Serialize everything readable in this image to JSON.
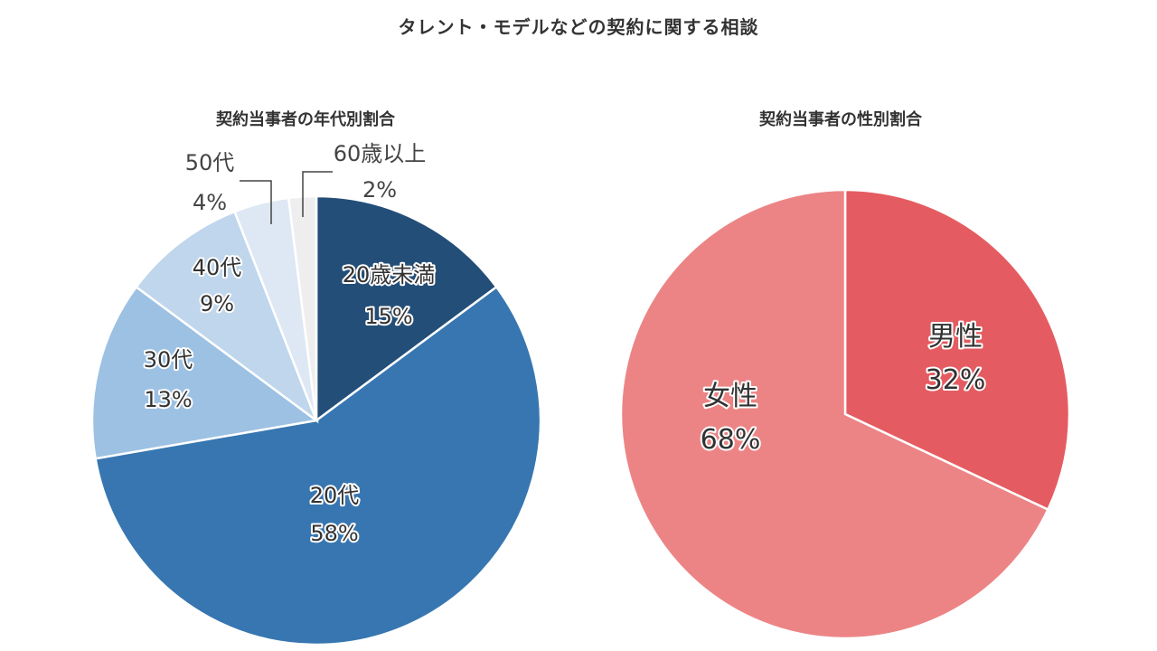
{
  "title": "タレント・モデルなどの契約に関する相談",
  "chart_data": [
    {
      "type": "pie",
      "title": "契約当事者の年代別割合",
      "categories": [
        "20歳未満",
        "20代",
        "30代",
        "40代",
        "50代",
        "60歳以上"
      ],
      "values": [
        15,
        58,
        13,
        9,
        4,
        2
      ],
      "labels": [
        "15%",
        "58%",
        "13%",
        "9%",
        "4%",
        "2%"
      ],
      "colors": [
        "#234e78",
        "#3776b0",
        "#9dc1e3",
        "#bfd6ec",
        "#dde8f4",
        "#eeeeee"
      ],
      "start_angle": "12 o'clock, clockwise",
      "legend": "none (data labels on slices)"
    },
    {
      "type": "pie",
      "title": "契約当事者の性別割合",
      "categories": [
        "男性",
        "女性"
      ],
      "values": [
        32,
        68
      ],
      "labels": [
        "32%",
        "68%"
      ],
      "colors": [
        "#e45c61",
        "#ec8485"
      ],
      "start_angle": "12 o'clock, clockwise",
      "legend": "none (data labels on slices)"
    }
  ],
  "age_chart": {
    "title": "契約当事者の年代別割合",
    "slices": [
      {
        "name": "20歳未満",
        "pct": "15%"
      },
      {
        "name": "20代",
        "pct": "58%"
      },
      {
        "name": "30代",
        "pct": "13%"
      },
      {
        "name": "40代",
        "pct": "9%"
      },
      {
        "name": "50代",
        "pct": "4%"
      },
      {
        "name": "60歳以上",
        "pct": "2%"
      }
    ]
  },
  "gender_chart": {
    "title": "契約当事者の性別割合",
    "slices": [
      {
        "name": "男性",
        "pct": "32%"
      },
      {
        "name": "女性",
        "pct": "68%"
      }
    ]
  }
}
